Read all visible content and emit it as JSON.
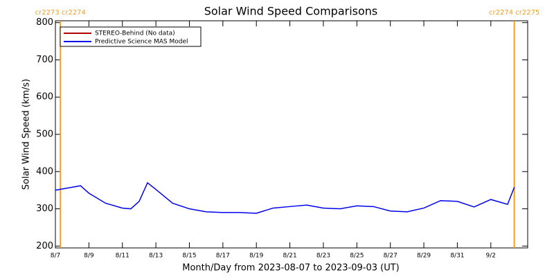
{
  "chart_data": {
    "type": "line",
    "title": "Solar Wind Speed Comparisons",
    "x_label": "Month/Day from 2023-08-07 to 2023-09-03 (UT)",
    "y_label": "Solar Wind Speed (km/s)",
    "x": [
      0,
      1,
      1.5,
      2,
      3,
      4,
      4.5,
      5,
      5.5,
      6,
      7,
      8,
      9,
      10,
      11,
      12,
      13,
      14,
      15,
      16,
      17,
      18,
      19,
      20,
      21,
      22,
      23,
      24,
      25,
      26,
      27,
      27.4
    ],
    "series": [
      {
        "name": "STEREO-Behind (No data)",
        "color": "#b00000",
        "values": [
          null,
          null,
          null,
          null,
          null,
          null,
          null,
          null,
          null,
          null,
          null,
          null,
          null,
          null,
          null,
          null,
          null,
          null,
          null,
          null,
          null,
          null,
          null,
          null,
          null,
          null,
          null,
          null,
          null,
          null,
          null,
          null
        ]
      },
      {
        "name": "Predictive Science MAS Model",
        "color": "#0000ee",
        "values": [
          350,
          358,
          362,
          342,
          315,
          302,
          300,
          320,
          370,
          352,
          315,
          300,
          292,
          290,
          290,
          288,
          302,
          306,
          310,
          302,
          300,
          308,
          306,
          294,
          292,
          302,
          322,
          320,
          305,
          325,
          312,
          358
        ]
      }
    ],
    "xlim": [
      0,
      28.2
    ],
    "xticks": [
      {
        "value": 0,
        "label": "8/7"
      },
      {
        "value": 2,
        "label": "8/9"
      },
      {
        "value": 4,
        "label": "8/11"
      },
      {
        "value": 6,
        "label": "8/13"
      },
      {
        "value": 8,
        "label": "8/15"
      },
      {
        "value": 10,
        "label": "8/17"
      },
      {
        "value": 12,
        "label": "8/19"
      },
      {
        "value": 14,
        "label": "8/21"
      },
      {
        "value": 16,
        "label": "8/23"
      },
      {
        "value": 18,
        "label": "8/25"
      },
      {
        "value": 20,
        "label": "8/27"
      },
      {
        "value": 22,
        "label": "8/29"
      },
      {
        "value": 24,
        "label": "8/31"
      },
      {
        "value": 26,
        "label": "9/2"
      }
    ],
    "ylim": [
      195,
      805
    ],
    "yticks": [
      200,
      300,
      400,
      500,
      600,
      700,
      800
    ],
    "markers": [
      {
        "x": 0.3,
        "label": "cr2273 cr2274"
      },
      {
        "x": 27.4,
        "label": "cr2274 cr2275"
      }
    ],
    "marker_color": "#f0a020",
    "legend": "top-left"
  }
}
